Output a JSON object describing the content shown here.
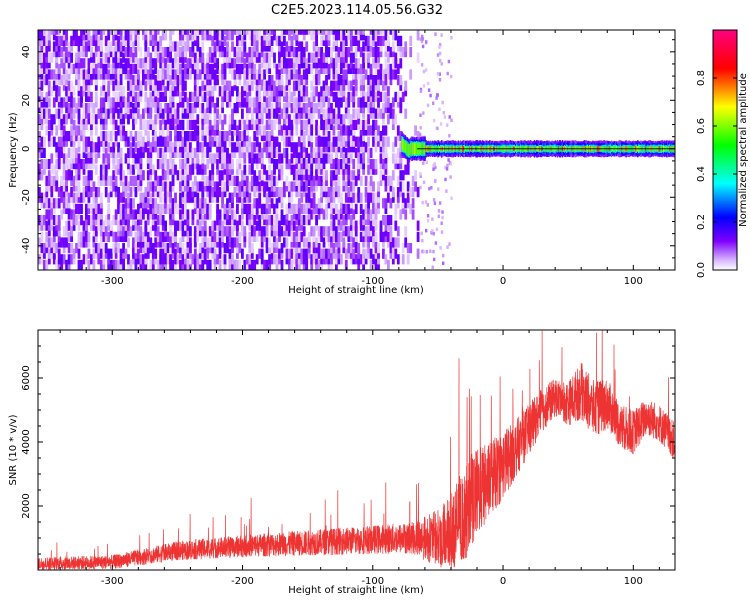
{
  "figure": {
    "title": "C2E5.2023.114.05.56.G32"
  },
  "chart_data": [
    {
      "type": "heatmap",
      "xlabel": "Height of straight line (km)",
      "ylabel": "Frequency (Hz)",
      "xlim": [
        -357,
        132
      ],
      "ylim": [
        -50,
        49
      ],
      "x_ticks": [
        -300,
        -200,
        -100,
        0,
        100
      ],
      "x_tick_labels": [
        "-300",
        "-200",
        "-100",
        "0",
        "100"
      ],
      "y_ticks": [
        -40,
        -20,
        0,
        20,
        40
      ],
      "y_tick_labels": [
        "-40",
        "-20",
        "0",
        "20",
        "40"
      ],
      "noise_region_x": [
        -357,
        -65
      ],
      "signal_start_x": -78,
      "signal_center_frequency_hz": 0,
      "colormap": [
        "#ffffff",
        "#7f00ff",
        "#0000ff",
        "#00ffff",
        "#00ff00",
        "#ffff00",
        "#ff0000",
        "#ff0080"
      ],
      "grid": false,
      "colorbar": {
        "label": "Normalized spectral amplitude",
        "range": [
          0,
          1
        ],
        "ticks": [
          0.0,
          0.2,
          0.4,
          0.6,
          0.8
        ],
        "tick_labels": [
          "0.0",
          "0.2",
          "0.4",
          "0.6",
          "0.8"
        ]
      }
    },
    {
      "type": "line",
      "xlabel": "Height of straight line (km)",
      "ylabel": "SNR (10 * v/v)",
      "xlim": [
        -357,
        132
      ],
      "ylim": [
        0,
        7500
      ],
      "x_ticks": [
        -300,
        -200,
        -100,
        0,
        100
      ],
      "x_tick_labels": [
        "-300",
        "-200",
        "-100",
        "0",
        "100"
      ],
      "y_ticks": [
        2000,
        4000,
        6000
      ],
      "y_tick_labels": [
        "2000",
        "4000",
        "6000"
      ],
      "line_color": "#ee3333",
      "grid": false,
      "envelope": {
        "x": [
          -357,
          -300,
          -250,
          -200,
          -150,
          -100,
          -70,
          -50,
          -40,
          -30,
          -20,
          -10,
          0,
          10,
          20,
          30,
          40,
          50,
          60,
          70,
          80,
          90,
          100,
          110,
          120,
          132
        ],
        "y": [
          200,
          250,
          600,
          750,
          850,
          950,
          1000,
          1000,
          1200,
          1800,
          2400,
          2800,
          3300,
          3800,
          4400,
          5000,
          5400,
          5200,
          5600,
          5000,
          5200,
          4500,
          4300,
          4800,
          4600,
          4000
        ],
        "noise_amplitude": [
          200,
          220,
          300,
          350,
          400,
          450,
          500,
          900,
          1300,
          1400,
          1400,
          1200,
          1100,
          900,
          800,
          700,
          600,
          700,
          900,
          900,
          800,
          700,
          700,
          600,
          600,
          600
        ]
      }
    }
  ]
}
